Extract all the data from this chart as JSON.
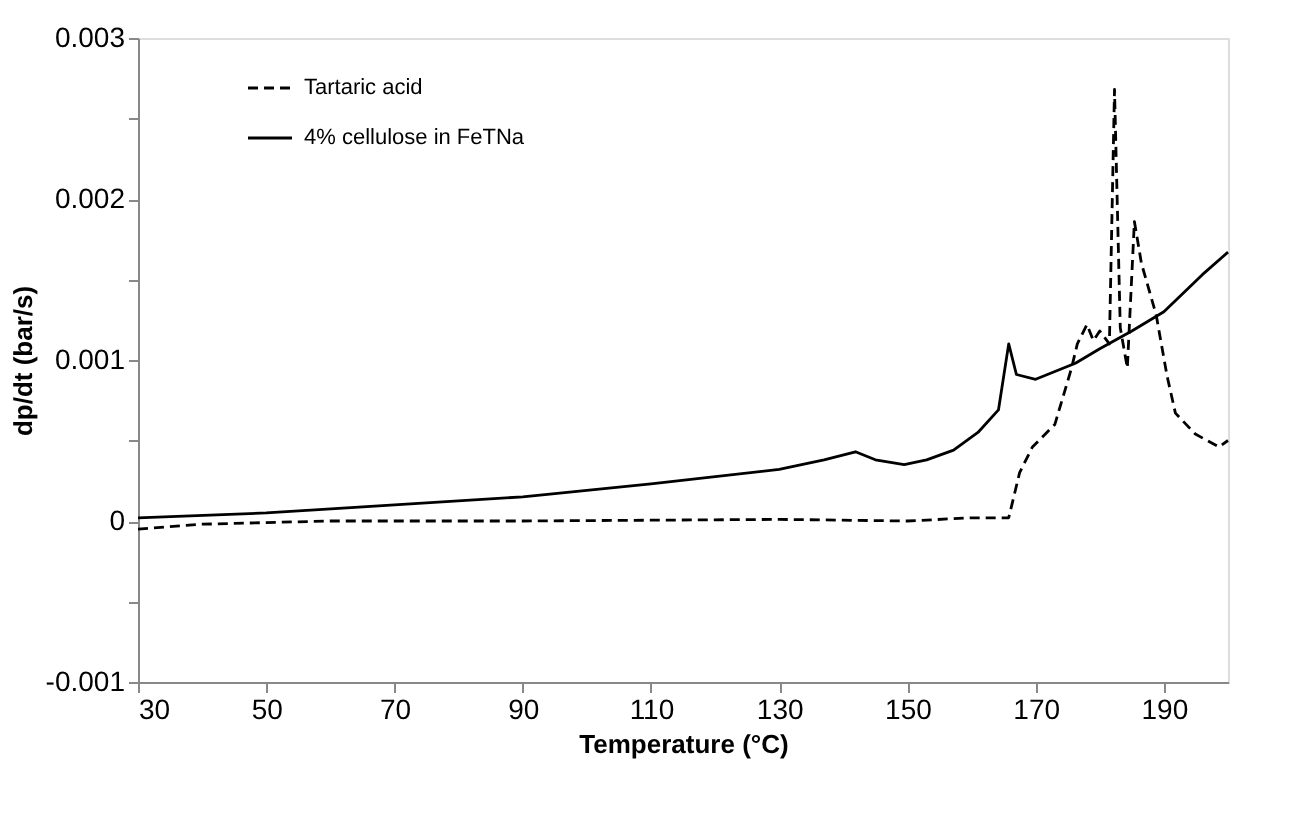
{
  "chart_data": {
    "type": "line",
    "xlabel": "Temperature (°C)",
    "ylabel": "dp/dt (bar/s)",
    "xlim": [
      30,
      200
    ],
    "xticks": [
      30,
      50,
      70,
      90,
      110,
      130,
      150,
      170,
      190
    ],
    "ylim": [
      -0.001,
      0.003
    ],
    "yticks": [
      -0.001,
      {
        "value": -0.0005,
        "label": null
      },
      0,
      {
        "value": 0.0005,
        "label": null
      },
      0.001,
      {
        "value": 0.0015,
        "label": null
      },
      0.002,
      {
        "value": 0.0025,
        "label": null
      },
      0.003
    ],
    "grid": false,
    "legend": "top left",
    "marker": "none",
    "series": [
      {
        "name": "Tartaric acid",
        "color": "#000000",
        "line_style": "dashed",
        "x": [
          30,
          40,
          60,
          90,
          130,
          150,
          160,
          165.8,
          167.5,
          169.5,
          173,
          175.6,
          176.5,
          178,
          179,
          180,
          181.5,
          182.3,
          183.2,
          184.3,
          185.4,
          186.5,
          188.8,
          190.5,
          191.8,
          194.9,
          198.6,
          200
        ],
        "values": [
          -5e-05,
          -2e-05,
          0.0,
          0.0,
          1e-05,
          0.0,
          2e-05,
          2e-05,
          0.0003,
          0.00046,
          0.0006,
          0.00095,
          0.0011,
          0.00122,
          0.00112,
          0.00118,
          0.0011,
          0.00268,
          0.0012,
          0.00095,
          0.00186,
          0.0016,
          0.00128,
          0.0009,
          0.00067,
          0.00054,
          0.00046,
          0.0005
        ]
      },
      {
        "name": "4% cellulose in FeTNa",
        "color": "#000000",
        "line_style": "solid",
        "x": [
          30,
          50,
          70,
          90,
          110,
          130,
          137,
          141.9,
          145,
          149.5,
          153,
          157.2,
          161,
          164.2,
          165.8,
          167,
          170,
          176.2,
          180,
          185,
          190,
          196,
          200
        ],
        "values": [
          2e-05,
          5e-05,
          0.0001,
          0.00015,
          0.00023,
          0.00032,
          0.00038,
          0.00043,
          0.00038,
          0.00035,
          0.00038,
          0.00044,
          0.00055,
          0.00069,
          0.0011,
          0.00091,
          0.00088,
          0.00098,
          0.00107,
          0.00118,
          0.0013,
          0.00153,
          0.00167
        ]
      }
    ]
  }
}
